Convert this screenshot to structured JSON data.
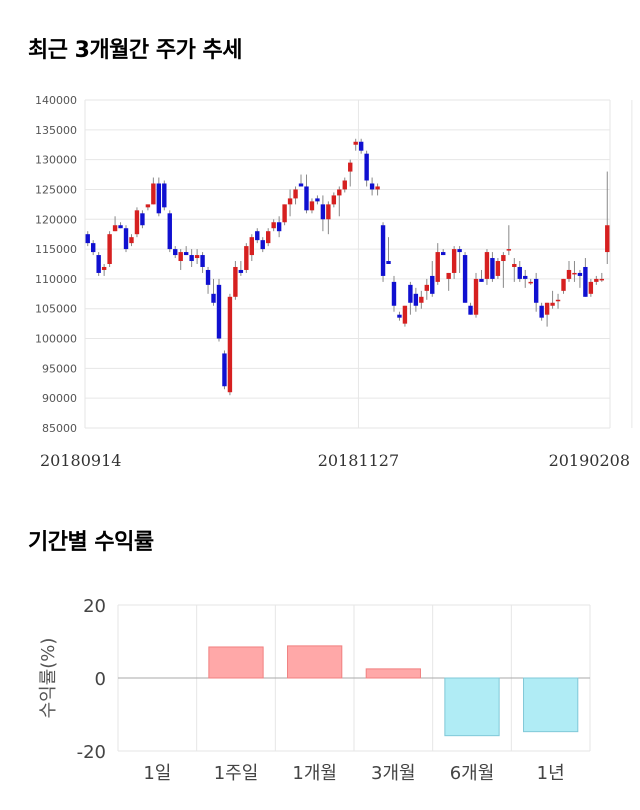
{
  "sections": {
    "price_title": "최근 3개월간 주가 추세",
    "return_title": "기간별 수익률"
  },
  "colors": {
    "up": "#d62020",
    "down": "#1010d0",
    "bar_pos": "#ffa8a8",
    "bar_neg": "#b0ecf5",
    "grid": "#e6e6e6"
  },
  "chart_data": [
    {
      "type": "candlestick",
      "title": "최근 3개월간 주가 추세",
      "ylim": [
        85000,
        140000
      ],
      "yticks": [
        85000,
        90000,
        95000,
        100000,
        105000,
        110000,
        115000,
        120000,
        125000,
        130000,
        135000,
        140000
      ],
      "ytick_labels": [
        "85000",
        "90000",
        "95000",
        "100000",
        "105000",
        "110000",
        "115000",
        "120000",
        "125000",
        "130000",
        "135000",
        "140000"
      ],
      "xtick_labels": [
        {
          "label": "20180914",
          "index": 0
        },
        {
          "label": "20181127",
          "index": 50
        },
        {
          "label": "20190208",
          "index": 100
        }
      ],
      "candles": [
        [
          117500,
          118000,
          115500,
          116000
        ],
        [
          116000,
          116500,
          114000,
          114500
        ],
        [
          114000,
          114500,
          110500,
          111000
        ],
        [
          111500,
          112500,
          110500,
          112000
        ],
        [
          112500,
          118000,
          112000,
          117500
        ],
        [
          118000,
          120500,
          118000,
          119000
        ],
        [
          119000,
          119500,
          118500,
          118500
        ],
        [
          118500,
          119000,
          114500,
          115000
        ],
        [
          116000,
          117500,
          115500,
          117000
        ],
        [
          117500,
          122000,
          117000,
          121500
        ],
        [
          121000,
          121500,
          118500,
          119000
        ],
        [
          122000,
          122500,
          121500,
          122500
        ],
        [
          122500,
          127000,
          122500,
          126000
        ],
        [
          126000,
          127000,
          120500,
          121000
        ],
        [
          126000,
          126500,
          121500,
          122000
        ],
        [
          121000,
          121500,
          114500,
          115000
        ],
        [
          115000,
          115500,
          113500,
          114000
        ],
        [
          113000,
          115000,
          111500,
          114500
        ],
        [
          114500,
          115500,
          114000,
          114000
        ],
        [
          114000,
          115000,
          112000,
          113000
        ],
        [
          113500,
          115000,
          112500,
          114000
        ],
        [
          114000,
          114500,
          111000,
          112000
        ],
        [
          111500,
          112000,
          107500,
          109000
        ],
        [
          107500,
          110000,
          105500,
          106000
        ],
        [
          109000,
          110000,
          99500,
          100000
        ],
        [
          97500,
          98000,
          91500,
          92000
        ],
        [
          91000,
          107500,
          90500,
          107000
        ],
        [
          107000,
          113000,
          106500,
          112000
        ],
        [
          111500,
          113000,
          110500,
          111000
        ],
        [
          111500,
          116000,
          111000,
          115500
        ],
        [
          114000,
          117500,
          113000,
          117000
        ],
        [
          118000,
          118500,
          116000,
          116500
        ],
        [
          116500,
          117000,
          114500,
          115000
        ],
        [
          116000,
          118500,
          115500,
          118000
        ],
        [
          118500,
          120000,
          118000,
          119500
        ],
        [
          119500,
          120500,
          117000,
          118000
        ],
        [
          119500,
          122500,
          119000,
          122500
        ],
        [
          122500,
          125000,
          120500,
          123500
        ],
        [
          123500,
          125500,
          122500,
          125000
        ],
        [
          126000,
          127500,
          125500,
          125500
        ],
        [
          125500,
          127500,
          121000,
          121500
        ],
        [
          121500,
          123500,
          121000,
          123000
        ],
        [
          123500,
          124000,
          122500,
          123000
        ],
        [
          122500,
          124000,
          118000,
          120000
        ],
        [
          120000,
          123000,
          117500,
          122500
        ],
        [
          122500,
          124500,
          122000,
          124000
        ],
        [
          124000,
          125500,
          120500,
          125000
        ],
        [
          125000,
          127000,
          124500,
          126500
        ],
        [
          128000,
          130000,
          125500,
          129500
        ],
        [
          132500,
          133500,
          131500,
          133000
        ],
        [
          133000,
          133500,
          131000,
          131500
        ],
        [
          131000,
          131500,
          125500,
          126500
        ],
        [
          126000,
          127000,
          124000,
          125000
        ],
        [
          125000,
          126000,
          124000,
          125500
        ],
        [
          119000,
          119500,
          109500,
          110500
        ],
        [
          113000,
          117000,
          112500,
          112500
        ],
        [
          109500,
          110500,
          104500,
          105500
        ],
        [
          104000,
          104500,
          103000,
          103500
        ],
        [
          102500,
          105500,
          102000,
          105500
        ],
        [
          109000,
          109500,
          104000,
          106000
        ],
        [
          107500,
          108500,
          104500,
          105500
        ],
        [
          106000,
          108000,
          105000,
          107000
        ],
        [
          108000,
          110000,
          106500,
          109000
        ],
        [
          110500,
          113000,
          107000,
          107500
        ],
        [
          109500,
          116000,
          109000,
          114500
        ],
        [
          114500,
          115000,
          114000,
          114000
        ],
        [
          110000,
          111000,
          108000,
          111000
        ],
        [
          111000,
          115500,
          110000,
          115000
        ],
        [
          115000,
          115500,
          111000,
          114500
        ],
        [
          114000,
          114500,
          106000,
          106000
        ],
        [
          105500,
          106000,
          104000,
          104000
        ],
        [
          104000,
          111000,
          103500,
          110000
        ],
        [
          110000,
          111500,
          109500,
          109500
        ],
        [
          110000,
          115000,
          109000,
          114500
        ],
        [
          113500,
          114500,
          109500,
          110000
        ],
        [
          110500,
          113500,
          110000,
          113000
        ],
        [
          113000,
          114500,
          108500,
          114000
        ],
        [
          115000,
          119000,
          114000,
          115000
        ],
        [
          112000,
          113500,
          109500,
          112500
        ],
        [
          112000,
          113000,
          109500,
          110000
        ],
        [
          110500,
          111500,
          108500,
          110000
        ],
        [
          109500,
          110000,
          109000,
          109500
        ],
        [
          110000,
          111000,
          104500,
          106000
        ],
        [
          105500,
          106000,
          103000,
          103500
        ],
        [
          104000,
          106000,
          102000,
          106000
        ],
        [
          105500,
          108000,
          105000,
          106000
        ],
        [
          106500,
          107500,
          105000,
          106500
        ],
        [
          108000,
          110000,
          107500,
          110000
        ],
        [
          110000,
          113000,
          109500,
          111500
        ],
        [
          111000,
          113000,
          109500,
          111000
        ],
        [
          111000,
          111500,
          108500,
          110500
        ],
        [
          112000,
          113500,
          107000,
          107000
        ],
        [
          107500,
          110000,
          107000,
          109500
        ],
        [
          109500,
          110500,
          109000,
          110000
        ],
        [
          110000,
          111000,
          109500,
          110000
        ],
        [
          114500,
          128000,
          112500,
          119000
        ]
      ]
    },
    {
      "type": "bar",
      "title": "기간별 수익률",
      "ylabel": "수익률(%)",
      "ylim": [
        -20,
        20
      ],
      "yticks": [
        -20,
        0,
        20
      ],
      "ytick_labels": [
        "-20",
        "0",
        "20"
      ],
      "categories": [
        "1일",
        "1주일",
        "1개월",
        "3개월",
        "6개월",
        "1년"
      ],
      "values": [
        0,
        8.5,
        8.8,
        2.5,
        -15.8,
        -14.7
      ]
    }
  ]
}
